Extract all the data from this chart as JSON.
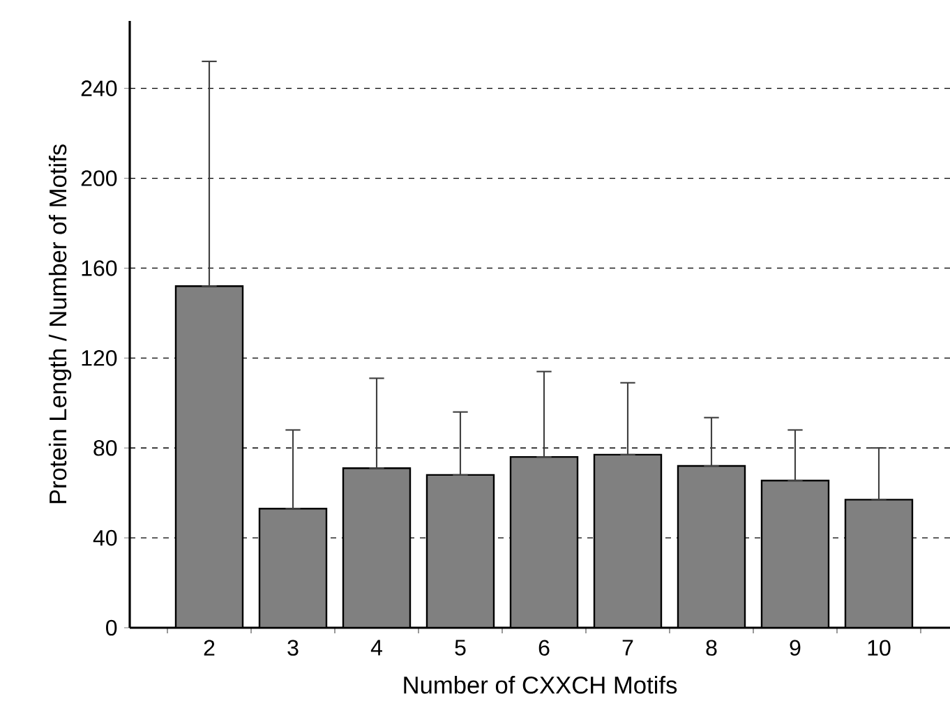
{
  "chart_data": {
    "type": "bar",
    "xlabel": "Number of CXXCH Motifs",
    "ylabel": "Protein Length / Number of Motifs",
    "categories": [
      "2",
      "3",
      "4",
      "5",
      "6",
      "7",
      "8",
      "9",
      "10"
    ],
    "values": [
      152,
      53,
      71,
      68,
      76,
      77,
      72,
      65.5,
      57
    ],
    "errors": [
      [
        152,
        252
      ],
      [
        53,
        88
      ],
      [
        71,
        111
      ],
      [
        68,
        96
      ],
      [
        76,
        114
      ],
      [
        77,
        109
      ],
      [
        72,
        93.5
      ],
      [
        65.5,
        88
      ],
      [
        57,
        80
      ]
    ],
    "color": "#808080",
    "ylim": [
      0,
      270
    ],
    "yticks": [
      0,
      40,
      80,
      120,
      160,
      200,
      240
    ],
    "grid": "y"
  }
}
